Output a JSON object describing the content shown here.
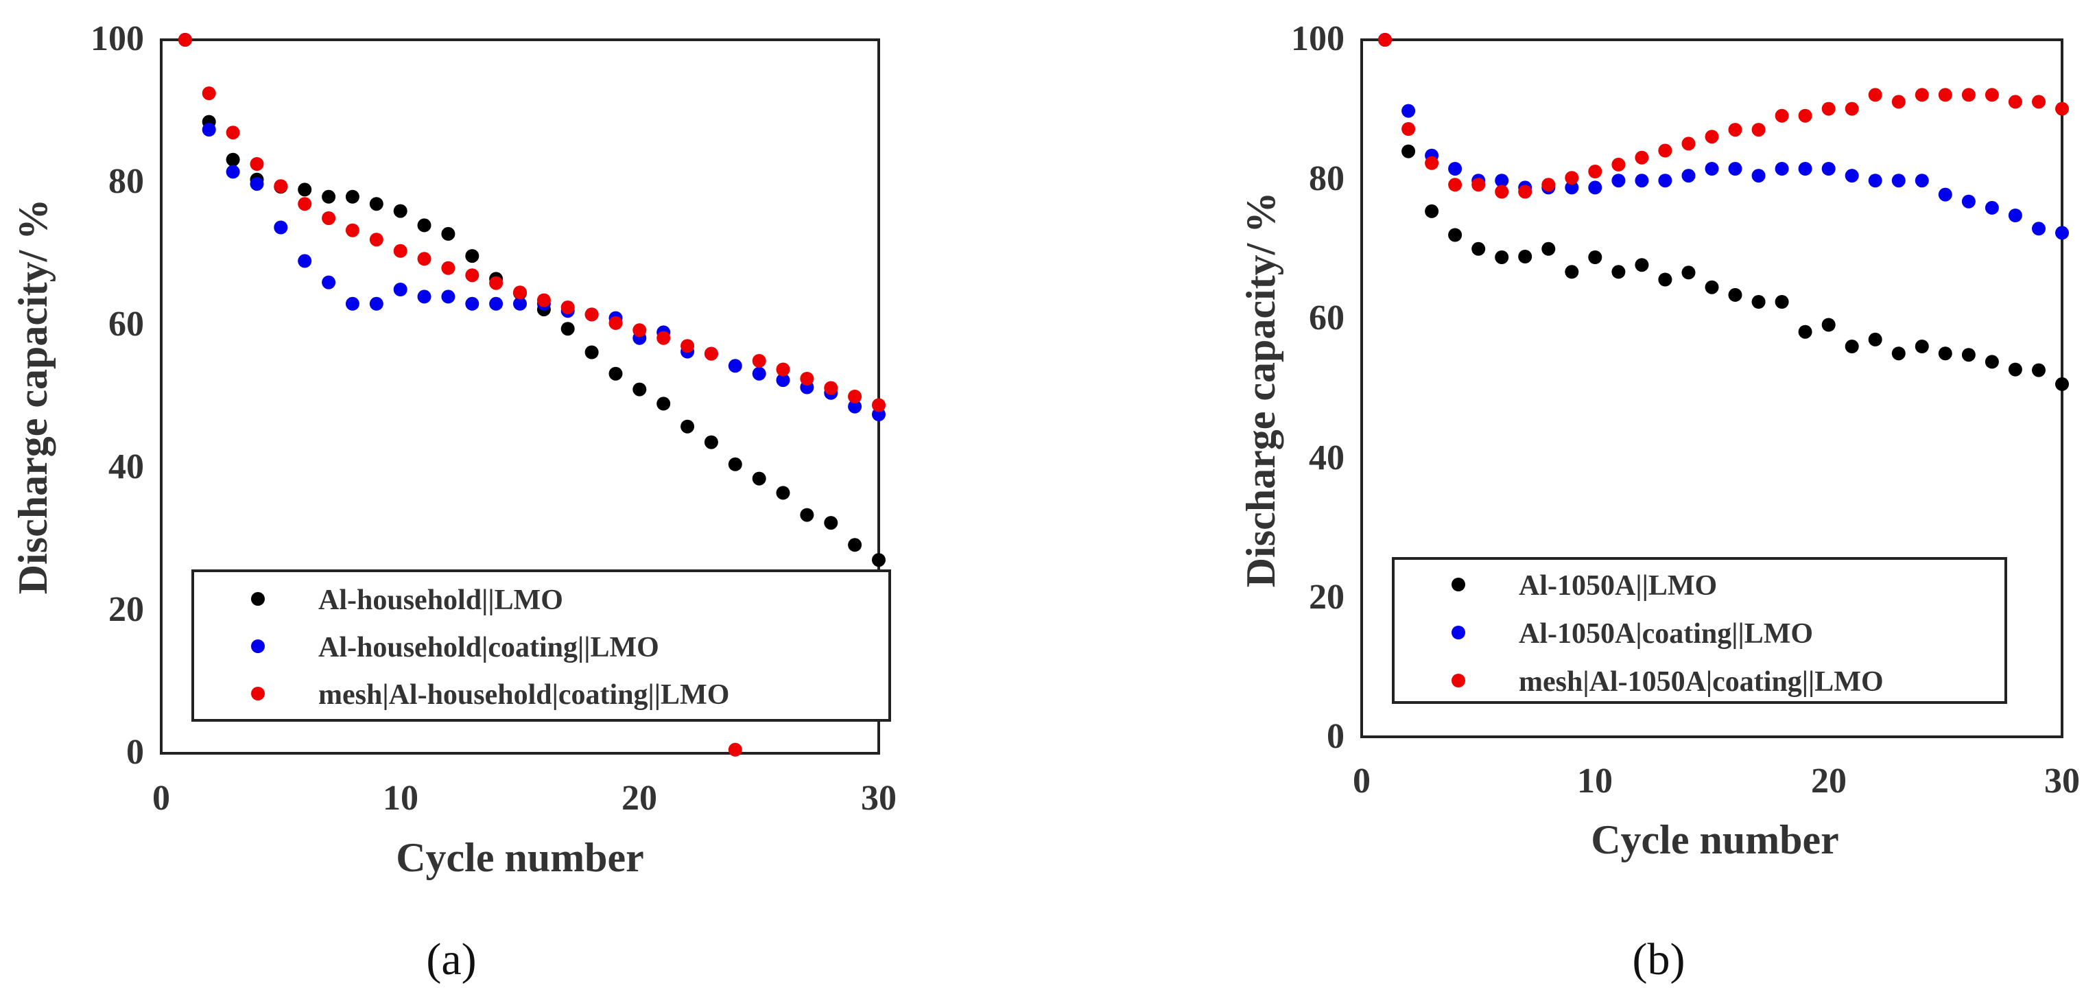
{
  "figure": {
    "panel_labels": [
      "(a)",
      "(b)"
    ]
  },
  "chart_data": [
    {
      "type": "scatter",
      "panel": "(a)",
      "xlabel": "Cycle number",
      "ylabel": "Discharge capacity/ %",
      "xlim": [
        0,
        30
      ],
      "ylim": [
        0,
        100
      ],
      "xticks": [
        "0",
        "10",
        "20",
        "30"
      ],
      "yticks": [
        "0",
        "20",
        "40",
        "60",
        "80",
        "100"
      ],
      "legend_position": "bottom",
      "series": [
        {
          "name": "Al-household||LMO",
          "color": "#000000",
          "points": [
            [
              1,
              100
            ],
            [
              2,
              88.5
            ],
            [
              3,
              83.2
            ],
            [
              4,
              80.4
            ],
            [
              5,
              79.4
            ],
            [
              6,
              79
            ],
            [
              7,
              78
            ],
            [
              8,
              78
            ],
            [
              9,
              77
            ],
            [
              10,
              76
            ],
            [
              11,
              74
            ],
            [
              12,
              72.8
            ],
            [
              13,
              69.7
            ],
            [
              14,
              66.5
            ],
            [
              15,
              64.5
            ],
            [
              16,
              62.2
            ],
            [
              17,
              59.5
            ],
            [
              18,
              56.2
            ],
            [
              19,
              53.2
            ],
            [
              20,
              51
            ],
            [
              21,
              49
            ],
            [
              22,
              45.8
            ],
            [
              23,
              43.6
            ],
            [
              24,
              40.5
            ],
            [
              25,
              38.5
            ],
            [
              26,
              36.5
            ],
            [
              27,
              33.4
            ],
            [
              28,
              32.3
            ],
            [
              29,
              29.2
            ],
            [
              30,
              27.1
            ]
          ]
        },
        {
          "name": "Al-household|coating||LMO",
          "color": "#0000ee",
          "points": [
            [
              1,
              100
            ],
            [
              2,
              87.4
            ],
            [
              3,
              81.5
            ],
            [
              4,
              79.8
            ],
            [
              5,
              73.7
            ],
            [
              6,
              69
            ],
            [
              7,
              66
            ],
            [
              8,
              63
            ],
            [
              9,
              63
            ],
            [
              10,
              65
            ],
            [
              11,
              64
            ],
            [
              12,
              64
            ],
            [
              13,
              63
            ],
            [
              14,
              63
            ],
            [
              15,
              63
            ],
            [
              16,
              63
            ],
            [
              17,
              62
            ],
            [
              18,
              61.5
            ],
            [
              19,
              61
            ],
            [
              20,
              58.2
            ],
            [
              21,
              59
            ],
            [
              22,
              56.3
            ],
            [
              23,
              56
            ],
            [
              24,
              54.3
            ],
            [
              25,
              53.2
            ],
            [
              26,
              52.3
            ],
            [
              27,
              51.3
            ],
            [
              28,
              50.5
            ],
            [
              29,
              48.6
            ],
            [
              30,
              47.5
            ]
          ]
        },
        {
          "name": "mesh|Al-household|coating||LMO",
          "color": "#ee0000",
          "points": [
            [
              1,
              100
            ],
            [
              2,
              92.5
            ],
            [
              3,
              87
            ],
            [
              4,
              82.6
            ],
            [
              5,
              79.5
            ],
            [
              6,
              77
            ],
            [
              7,
              75
            ],
            [
              8,
              73.3
            ],
            [
              9,
              72
            ],
            [
              10,
              70.4
            ],
            [
              11,
              69.3
            ],
            [
              12,
              68
            ],
            [
              13,
              67
            ],
            [
              14,
              65.9
            ],
            [
              15,
              64.6
            ],
            [
              16,
              63.5
            ],
            [
              17,
              62.5
            ],
            [
              18,
              61.5
            ],
            [
              19,
              60.3
            ],
            [
              20,
              59.3
            ],
            [
              21,
              58.2
            ],
            [
              22,
              57.1
            ],
            [
              23,
              56
            ],
            [
              24,
              0.5
            ],
            [
              25,
              55
            ],
            [
              26,
              53.8
            ],
            [
              27,
              52.5
            ],
            [
              28,
              51.2
            ],
            [
              29,
              50
            ],
            [
              30,
              48.8
            ]
          ]
        }
      ]
    },
    {
      "type": "scatter",
      "panel": "(b)",
      "xlabel": "Cycle number",
      "ylabel": "Discharge capacity/ %",
      "xlim": [
        0,
        30
      ],
      "ylim": [
        0,
        100
      ],
      "xticks": [
        "0",
        "10",
        "20",
        "30"
      ],
      "yticks": [
        "0",
        "20",
        "40",
        "60",
        "80",
        "100"
      ],
      "legend_position": "bottom",
      "series": [
        {
          "name": "Al-1050A||LMO",
          "color": "#000000",
          "points": [
            [
              1,
              100
            ],
            [
              2,
              84
            ],
            [
              3,
              75.4
            ],
            [
              4,
              72
            ],
            [
              5,
              70
            ],
            [
              6,
              68.8
            ],
            [
              7,
              68.9
            ],
            [
              8,
              70
            ],
            [
              9,
              66.7
            ],
            [
              10,
              68.8
            ],
            [
              11,
              66.7
            ],
            [
              12,
              67.7
            ],
            [
              13,
              65.6
            ],
            [
              14,
              66.6
            ],
            [
              15,
              64.5
            ],
            [
              16,
              63.4
            ],
            [
              17,
              62.4
            ],
            [
              18,
              62.4
            ],
            [
              19,
              58.1
            ],
            [
              20,
              59.1
            ],
            [
              21,
              56
            ],
            [
              22,
              57
            ],
            [
              23,
              55
            ],
            [
              24,
              56
            ],
            [
              25,
              55
            ],
            [
              26,
              54.8
            ],
            [
              27,
              53.8
            ],
            [
              28,
              52.7
            ],
            [
              29,
              52.6
            ],
            [
              30,
              50.6
            ]
          ]
        },
        {
          "name": "Al-1050A|coating||LMO",
          "color": "#0000ee",
          "points": [
            [
              1,
              100
            ],
            [
              2,
              89.8
            ],
            [
              3,
              83.4
            ],
            [
              4,
              81.5
            ],
            [
              5,
              79.8
            ],
            [
              6,
              79.8
            ],
            [
              7,
              78.8
            ],
            [
              8,
              78.8
            ],
            [
              9,
              78.8
            ],
            [
              10,
              78.8
            ],
            [
              11,
              79.8
            ],
            [
              12,
              79.8
            ],
            [
              13,
              79.8
            ],
            [
              14,
              80.5
            ],
            [
              15,
              81.5
            ],
            [
              16,
              81.5
            ],
            [
              17,
              80.5
            ],
            [
              18,
              81.5
            ],
            [
              19,
              81.5
            ],
            [
              20,
              81.5
            ],
            [
              21,
              80.5
            ],
            [
              22,
              79.8
            ],
            [
              23,
              79.8
            ],
            [
              24,
              79.8
            ],
            [
              25,
              77.8
            ],
            [
              26,
              76.8
            ],
            [
              27,
              75.9
            ],
            [
              28,
              74.8
            ],
            [
              29,
              72.9
            ],
            [
              30,
              72.3
            ]
          ]
        },
        {
          "name": "mesh|Al-1050A|coating||LMO",
          "color": "#ee0000",
          "points": [
            [
              1,
              100
            ],
            [
              2,
              87.2
            ],
            [
              3,
              82.3
            ],
            [
              4,
              79.2
            ],
            [
              5,
              79.2
            ],
            [
              6,
              78.2
            ],
            [
              7,
              78.2
            ],
            [
              8,
              79.2
            ],
            [
              9,
              80.2
            ],
            [
              10,
              81.1
            ],
            [
              11,
              82.1
            ],
            [
              12,
              83.1
            ],
            [
              13,
              84.1
            ],
            [
              14,
              85.1
            ],
            [
              15,
              86.1
            ],
            [
              16,
              87.1
            ],
            [
              17,
              87.1
            ],
            [
              18,
              89.1
            ],
            [
              19,
              89.1
            ],
            [
              20,
              90.1
            ],
            [
              21,
              90.1
            ],
            [
              22,
              92.1
            ],
            [
              23,
              91.1
            ],
            [
              24,
              92.1
            ],
            [
              25,
              92.1
            ],
            [
              26,
              92.1
            ],
            [
              27,
              92.1
            ],
            [
              28,
              91.1
            ],
            [
              29,
              91.1
            ],
            [
              30,
              90.1
            ]
          ]
        }
      ]
    }
  ]
}
